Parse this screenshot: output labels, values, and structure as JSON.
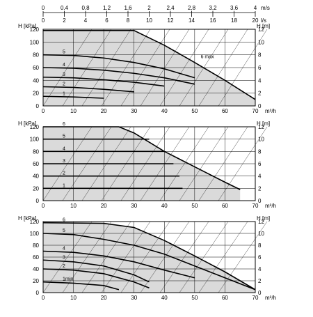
{
  "colors": {
    "shade": "#dadada",
    "grid": "#000000",
    "curve": "#000000",
    "background": "#ffffff"
  },
  "chart_data": [
    {
      "type": "line",
      "panel": "top",
      "xlabel": "m³/h",
      "ylabel_left": "H [kPa]",
      "ylabel_right": "H [m]",
      "x_ticks": [
        "0",
        "10",
        "20",
        "30",
        "40",
        "50",
        "60",
        "70"
      ],
      "y_left_ticks": [
        "0",
        "20",
        "40",
        "60",
        "80",
        "100",
        "120"
      ],
      "y_right_ticks": [
        "0",
        "2",
        "4",
        "6",
        "8",
        "10",
        "12"
      ],
      "top_axis": {
        "ms_label": "m/s",
        "ms_ticks": [
          "0",
          "0,4",
          "0,8",
          "1,2",
          "1,6",
          "2",
          "2,4",
          "2,8",
          "3,2",
          "3,6",
          "4"
        ],
        "ls_label": "l/s",
        "ls_ticks": [
          "0",
          "2",
          "4",
          "6",
          "8",
          "10",
          "12",
          "14",
          "16",
          "18",
          "20"
        ]
      },
      "xlim": [
        0,
        70
      ],
      "ylim": [
        0,
        120
      ],
      "series": [
        {
          "name": "6 max",
          "x": [
            0,
            20,
            30,
            40,
            50,
            60,
            70
          ],
          "y": [
            118,
            118,
            118,
            95,
            68,
            40,
            10
          ]
        },
        {
          "name": "5",
          "x": [
            0,
            10,
            20,
            30,
            40,
            50
          ],
          "y": [
            80,
            79,
            75,
            68,
            58,
            44
          ]
        },
        {
          "name": "4",
          "x": [
            0,
            10,
            20,
            30,
            40,
            50
          ],
          "y": [
            60,
            59,
            56,
            51,
            44,
            34
          ]
        },
        {
          "name": "3",
          "x": [
            0,
            10,
            20,
            30,
            40
          ],
          "y": [
            45,
            44,
            41,
            37,
            31
          ]
        },
        {
          "name": "2",
          "x": [
            0,
            10,
            20,
            30
          ],
          "y": [
            30,
            29,
            26,
            22
          ]
        },
        {
          "name": "1",
          "x": [
            0,
            10,
            20
          ],
          "y": [
            15,
            14,
            12
          ]
        }
      ]
    },
    {
      "type": "line",
      "panel": "middle",
      "xlabel": "m³/h",
      "ylabel_left": "H [kPa]",
      "ylabel_right": "H [m]",
      "x_ticks": [
        "0",
        "10",
        "20",
        "30",
        "40",
        "50",
        "60",
        "70"
      ],
      "y_left_ticks": [
        "0",
        "20",
        "40",
        "60",
        "80",
        "100",
        "120"
      ],
      "y_right_ticks": [
        "0",
        "2",
        "4",
        "6",
        "8",
        "10",
        "12"
      ],
      "xlim": [
        0,
        70
      ],
      "ylim": [
        0,
        120
      ],
      "series": [
        {
          "name": "6",
          "x": [
            0,
            25,
            30,
            40,
            50,
            60,
            65
          ],
          "y": [
            120,
            120,
            110,
            80,
            55,
            30,
            18
          ]
        },
        {
          "name": "5",
          "x": [
            0,
            35
          ],
          "y": [
            100,
            100
          ]
        },
        {
          "name": "4",
          "x": [
            0,
            40
          ],
          "y": [
            80,
            80
          ]
        },
        {
          "name": "3",
          "x": [
            0,
            43
          ],
          "y": [
            60,
            60
          ]
        },
        {
          "name": "2",
          "x": [
            0,
            45
          ],
          "y": [
            40,
            40
          ]
        },
        {
          "name": "1",
          "x": [
            0,
            46
          ],
          "y": [
            20,
            20
          ]
        }
      ]
    },
    {
      "type": "line",
      "panel": "bottom",
      "xlabel": "m³/h",
      "ylabel_left": "H [kPa]",
      "ylabel_right": "H [m]",
      "x_ticks": [
        "0",
        "10",
        "20",
        "30",
        "40",
        "50",
        "60",
        "70"
      ],
      "y_left_ticks": [
        "0",
        "20",
        "40",
        "60",
        "80",
        "100",
        "120"
      ],
      "y_right_ticks": [
        "0",
        "2",
        "4",
        "6",
        "8",
        "10",
        "12"
      ],
      "xlim": [
        0,
        70
      ],
      "ylim": [
        0,
        120
      ],
      "series": [
        {
          "name": "6",
          "x": [
            0,
            20,
            30,
            40,
            50,
            60,
            70
          ],
          "y": [
            118,
            117,
            110,
            88,
            62,
            35,
            5
          ]
        },
        {
          "name": "5",
          "x": [
            0,
            10,
            20,
            30,
            40,
            50,
            60,
            70
          ],
          "y": [
            100,
            98,
            90,
            80,
            65,
            45,
            25,
            5
          ]
        },
        {
          "name": "4",
          "x": [
            0,
            10,
            20,
            30,
            40,
            50
          ],
          "y": [
            70,
            68,
            62,
            52,
            38,
            25
          ]
        },
        {
          "name": "3",
          "x": [
            0,
            10,
            20,
            30,
            35
          ],
          "y": [
            55,
            52,
            45,
            30,
            18
          ]
        },
        {
          "name": "2",
          "x": [
            0,
            10,
            20,
            30,
            35
          ],
          "y": [
            40,
            38,
            32,
            18,
            8
          ]
        },
        {
          "name": "1min",
          "x": [
            0,
            10,
            20,
            25
          ],
          "y": [
            18,
            16,
            12,
            5
          ]
        }
      ]
    }
  ]
}
